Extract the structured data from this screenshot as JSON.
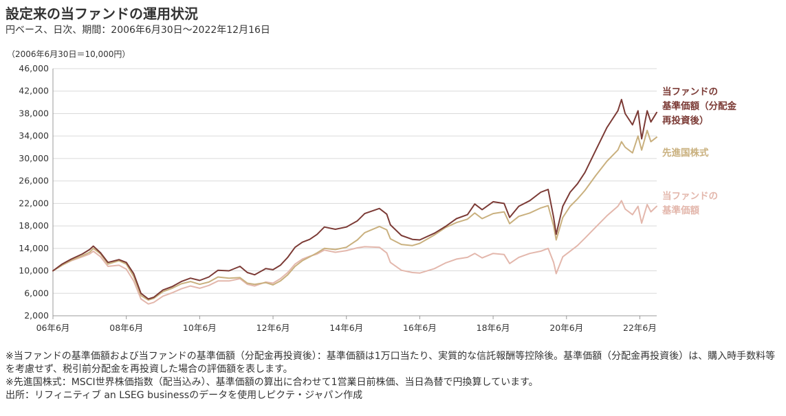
{
  "header": {
    "title": "設定来の当ファンドの運用状況",
    "subtitle": "円ベース、日次、期間：2006年6月30日～2022年12月16日"
  },
  "chart_data": {
    "type": "line",
    "base_note": "（2006年6月30日＝10,000円）",
    "ylim": [
      2000,
      46000
    ],
    "yticks": [
      2000,
      6000,
      10000,
      14000,
      18000,
      22000,
      26000,
      30000,
      34000,
      38000,
      42000,
      46000
    ],
    "ytick_labels": [
      "2,000",
      "6,000",
      "10,000",
      "14,000",
      "18,000",
      "22,000",
      "26,000",
      "30,000",
      "34,000",
      "38,000",
      "42,000",
      "46,000"
    ],
    "xlim": [
      2006.5,
      2022.96
    ],
    "xticks": [
      2006.5,
      2008.5,
      2010.5,
      2012.5,
      2014.5,
      2016.5,
      2018.5,
      2020.5,
      2022.5
    ],
    "xtick_labels": [
      "06年6月",
      "08年6月",
      "10年6月",
      "12年6月",
      "14年6月",
      "16年6月",
      "18年6月",
      "20年6月",
      "22年6月"
    ],
    "grid": true,
    "series": [
      {
        "name": "当ファンドの基準価額（分配金再投資後）",
        "label_lines": [
          "当ファンドの",
          "基準価額（分配金",
          "再投資後）"
        ],
        "color": "#7b3a35",
        "x": [
          2006.5,
          2006.75,
          2007.0,
          2007.3,
          2007.5,
          2007.6,
          2007.8,
          2008.0,
          2008.3,
          2008.5,
          2008.7,
          2008.9,
          2009.1,
          2009.25,
          2009.5,
          2009.75,
          2010.0,
          2010.25,
          2010.5,
          2010.75,
          2011.0,
          2011.3,
          2011.6,
          2011.8,
          2012.0,
          2012.3,
          2012.5,
          2012.7,
          2012.9,
          2013.1,
          2013.3,
          2013.5,
          2013.7,
          2013.9,
          2014.2,
          2014.5,
          2014.8,
          2015.0,
          2015.4,
          2015.6,
          2015.7,
          2016.0,
          2016.3,
          2016.5,
          2016.9,
          2017.2,
          2017.5,
          2017.8,
          2018.0,
          2018.2,
          2018.5,
          2018.8,
          2018.95,
          2019.2,
          2019.5,
          2019.8,
          2020.0,
          2020.15,
          2020.22,
          2020.4,
          2020.6,
          2020.8,
          2021.0,
          2021.3,
          2021.6,
          2021.9,
          2022.0,
          2022.1,
          2022.3,
          2022.45,
          2022.55,
          2022.7,
          2022.8,
          2022.96
        ],
        "values": [
          10000,
          11200,
          12100,
          13000,
          13800,
          14400,
          13200,
          11500,
          12000,
          11500,
          9500,
          6000,
          5000,
          5300,
          6600,
          7200,
          8100,
          8700,
          8300,
          8900,
          10100,
          10000,
          10800,
          9700,
          9300,
          10400,
          10200,
          11000,
          12400,
          14200,
          15100,
          15600,
          16500,
          17800,
          17400,
          17800,
          18900,
          20200,
          21100,
          20100,
          18200,
          16300,
          15600,
          15500,
          16700,
          17900,
          19300,
          20000,
          21900,
          20900,
          22300,
          22000,
          19500,
          21500,
          22500,
          24000,
          24500,
          19500,
          16500,
          21500,
          24000,
          25500,
          27500,
          31500,
          35500,
          38500,
          40500,
          38000,
          36000,
          38500,
          33500,
          38500,
          36500,
          38200
        ]
      },
      {
        "name": "先進国株式",
        "label_lines": [
          "先進国株式"
        ],
        "color": "#c9b07e",
        "x": [
          2006.5,
          2006.75,
          2007.0,
          2007.3,
          2007.5,
          2007.6,
          2007.8,
          2008.0,
          2008.3,
          2008.5,
          2008.7,
          2008.9,
          2009.1,
          2009.25,
          2009.5,
          2009.75,
          2010.0,
          2010.25,
          2010.5,
          2010.75,
          2011.0,
          2011.3,
          2011.6,
          2011.8,
          2012.0,
          2012.3,
          2012.5,
          2012.7,
          2012.9,
          2013.1,
          2013.3,
          2013.5,
          2013.7,
          2013.9,
          2014.2,
          2014.5,
          2014.8,
          2015.0,
          2015.4,
          2015.6,
          2015.7,
          2016.0,
          2016.3,
          2016.5,
          2016.9,
          2017.2,
          2017.5,
          2017.8,
          2018.0,
          2018.2,
          2018.5,
          2018.8,
          2018.95,
          2019.2,
          2019.5,
          2019.8,
          2020.0,
          2020.15,
          2020.22,
          2020.4,
          2020.6,
          2020.8,
          2021.0,
          2021.3,
          2021.6,
          2021.9,
          2022.0,
          2022.1,
          2022.3,
          2022.45,
          2022.55,
          2022.7,
          2022.8,
          2022.96
        ],
        "values": [
          10000,
          11000,
          11900,
          12700,
          13300,
          14000,
          13000,
          11200,
          11800,
          11200,
          9000,
          5600,
          4800,
          5100,
          6300,
          6900,
          7700,
          8100,
          7600,
          8000,
          8900,
          8700,
          8800,
          7800,
          7600,
          7900,
          7500,
          8200,
          9300,
          10800,
          11800,
          12500,
          13200,
          14000,
          13800,
          14200,
          15500,
          16800,
          17900,
          17300,
          15700,
          14700,
          14500,
          14900,
          16400,
          17700,
          18600,
          19200,
          20300,
          19300,
          20200,
          20500,
          18400,
          19700,
          20300,
          21200,
          21600,
          18000,
          15500,
          19500,
          21500,
          22800,
          24300,
          27000,
          29500,
          31500,
          33000,
          32000,
          31000,
          34000,
          31500,
          35000,
          33000,
          33800
        ]
      },
      {
        "name": "当ファンドの基準価額",
        "label_lines": [
          "当ファンドの",
          "基準価額"
        ],
        "color": "#e3b7ac",
        "x": [
          2006.5,
          2006.75,
          2007.0,
          2007.3,
          2007.5,
          2007.6,
          2007.8,
          2008.0,
          2008.3,
          2008.5,
          2008.7,
          2008.9,
          2009.1,
          2009.25,
          2009.5,
          2009.75,
          2010.0,
          2010.25,
          2010.5,
          2010.75,
          2011.0,
          2011.3,
          2011.6,
          2011.8,
          2012.0,
          2012.3,
          2012.5,
          2012.7,
          2012.9,
          2013.1,
          2013.3,
          2013.5,
          2013.7,
          2013.9,
          2014.2,
          2014.5,
          2014.8,
          2015.0,
          2015.4,
          2015.6,
          2015.7,
          2016.0,
          2016.3,
          2016.5,
          2016.9,
          2017.2,
          2017.5,
          2017.8,
          2018.0,
          2018.2,
          2018.5,
          2018.8,
          2018.95,
          2019.2,
          2019.5,
          2019.8,
          2020.0,
          2020.15,
          2020.22,
          2020.4,
          2020.6,
          2020.8,
          2021.0,
          2021.3,
          2021.6,
          2021.9,
          2022.0,
          2022.1,
          2022.3,
          2022.45,
          2022.55,
          2022.7,
          2022.8,
          2022.96
        ],
        "values": [
          10000,
          11000,
          11800,
          12500,
          13000,
          13500,
          12500,
          10800,
          11000,
          10300,
          8200,
          5000,
          4100,
          4400,
          5500,
          6100,
          6800,
          7300,
          6900,
          7400,
          8200,
          8200,
          8600,
          7600,
          7300,
          8000,
          7800,
          8600,
          9700,
          11200,
          12100,
          12600,
          13000,
          13700,
          13300,
          13600,
          14100,
          14300,
          14200,
          13200,
          11500,
          10100,
          9700,
          9600,
          10400,
          11400,
          12100,
          12400,
          13100,
          12300,
          13100,
          12900,
          11300,
          12400,
          13100,
          13500,
          14000,
          11500,
          9500,
          12500,
          13500,
          14500,
          15800,
          17800,
          19800,
          21500,
          22500,
          21000,
          20000,
          21500,
          18500,
          21800,
          20500,
          21500
        ]
      }
    ]
  },
  "notes": [
    "※当ファンドの基準価額および当ファンドの基準価額（分配金再投資後）：基準価額は1万口当たり、実質的な信託報酬等控除後。基準価額（分配金再投資後）は、購入時手数料等を考慮せず、税引前分配金を再投資した場合の評価額を表します。",
    "※先進国株式：MSCI世界株価指数（配当込み）、基準価額の算出に合わせて1営業日前株価、当日為替で円換算しています。",
    "出所：リフィニティブ an LSEG businessのデータを使用しピクテ・ジャパン作成"
  ]
}
